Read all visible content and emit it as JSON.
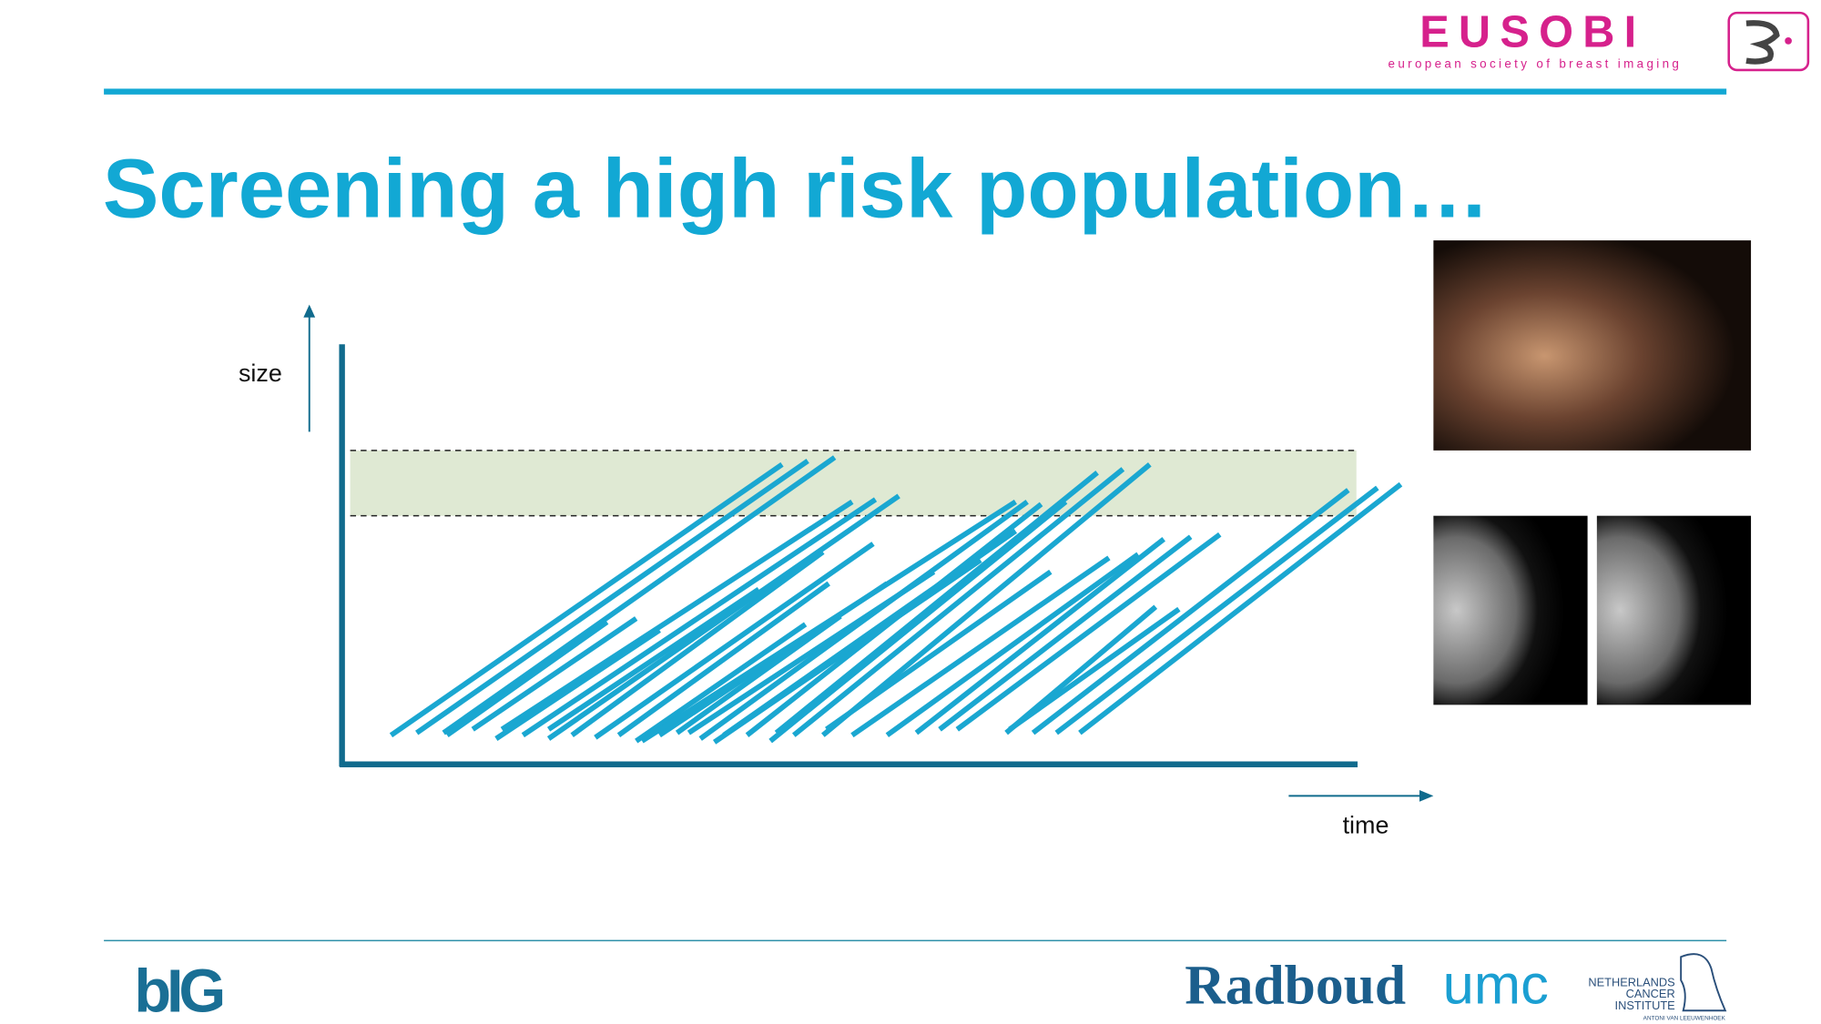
{
  "header": {
    "logo_text": "EUSOBI",
    "logo_subtitle": "european society of breast imaging"
  },
  "title": "Screening a high risk population…",
  "diagram": {
    "y_axis_label": "size",
    "x_axis_label": "time"
  },
  "footer": {
    "left_logo": "bIG",
    "radboud": "Radboud",
    "umc": "umc",
    "nki": [
      "NETHERLANDS",
      "CANCER",
      "INSTITUTE"
    ],
    "nki_subtitle": "ANTONI VAN LEEUWENHOEK"
  }
}
